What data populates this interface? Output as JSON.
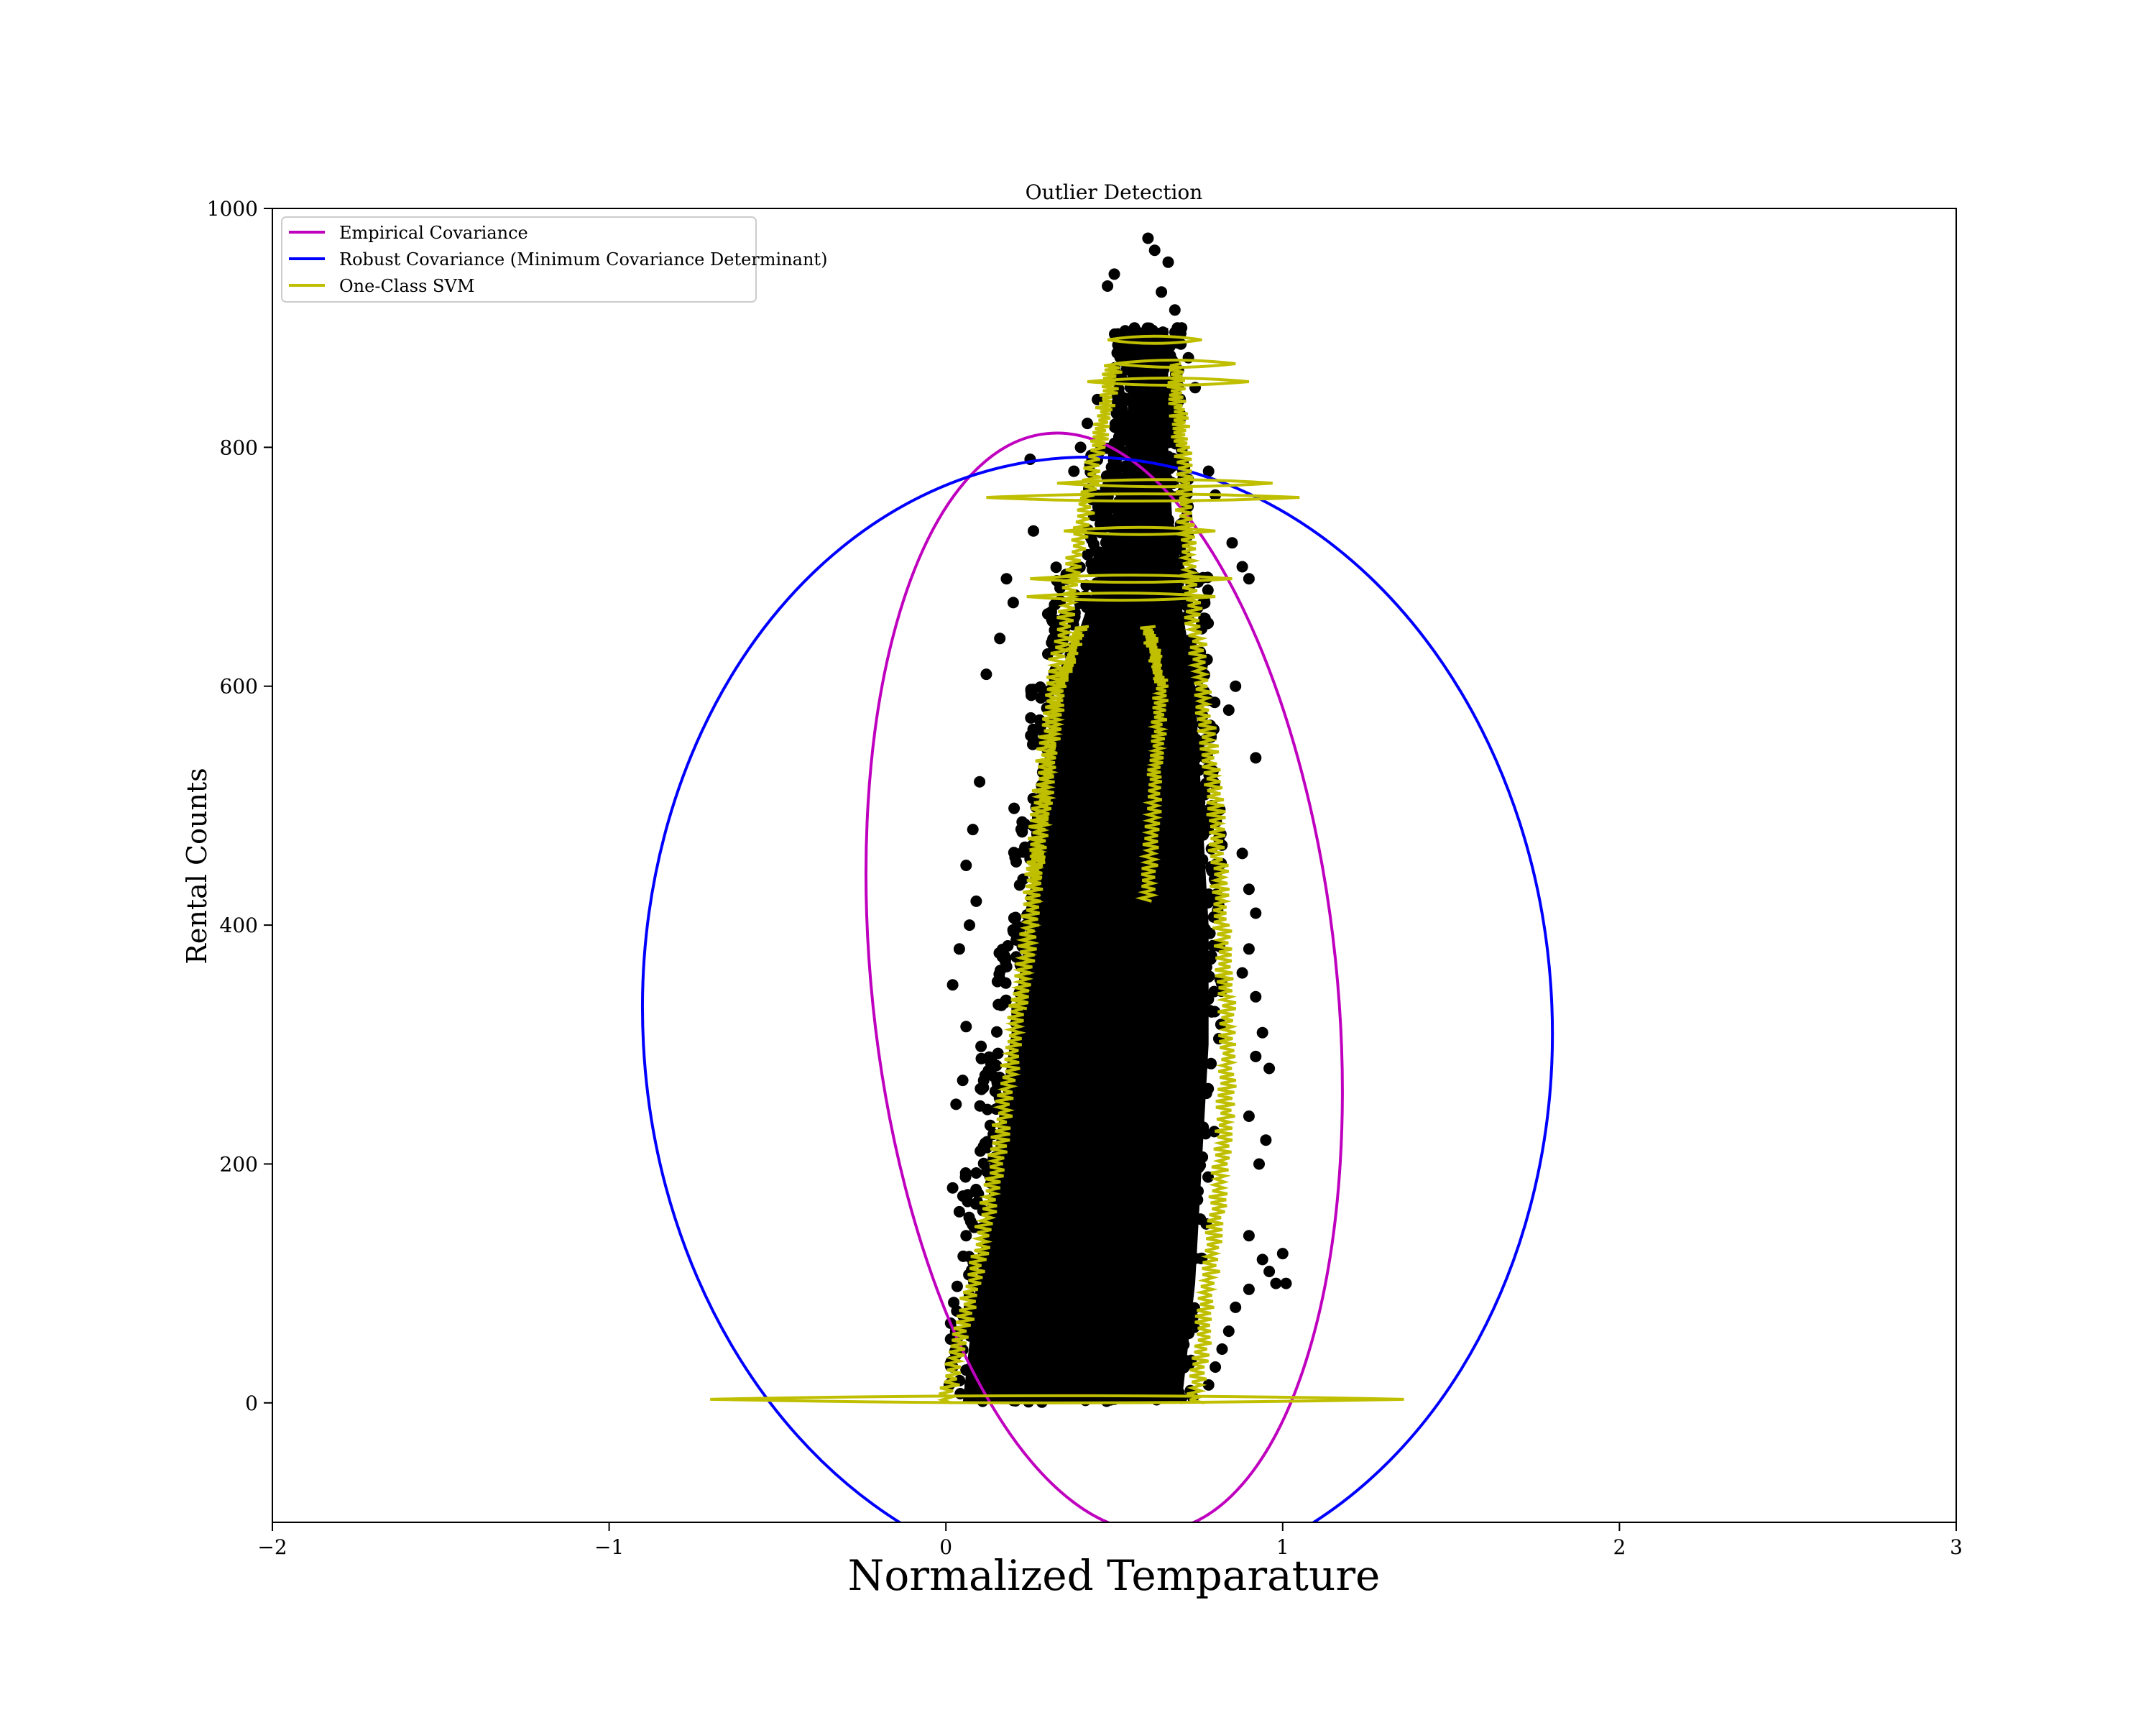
{
  "chart_data": {
    "type": "scatter",
    "title": "Outlier Detection",
    "xlabel": "Normalized Temparature",
    "ylabel": "Rental Counts",
    "xlim": [
      -2,
      3
    ],
    "ylim": [
      -100,
      1000
    ],
    "xticks": [
      -2,
      -1,
      0,
      1,
      2,
      3
    ],
    "xtick_labels": [
      "−2",
      "−1",
      "0",
      "1",
      "2",
      "3"
    ],
    "yticks": [
      0,
      200,
      400,
      600,
      800,
      1000
    ],
    "ytick_labels": [
      "0",
      "200",
      "400",
      "600",
      "800",
      "1000"
    ],
    "grid": false,
    "legend_position": "top-left",
    "legend": [
      {
        "label": "Empirical Covariance",
        "color": "#bf00bf"
      },
      {
        "label": "Robust Covariance (Minimum Covariance Determinant)",
        "color": "#0000ff"
      },
      {
        "label": "One-Class SVM",
        "color": "#bfbf00"
      }
    ],
    "scatter_color": "#000000",
    "scatter_points": [
      [
        0.25,
        790
      ],
      [
        0.26,
        730
      ],
      [
        0.5,
        945
      ],
      [
        0.48,
        935
      ],
      [
        0.6,
        975
      ],
      [
        0.62,
        965
      ],
      [
        0.66,
        955
      ],
      [
        0.64,
        930
      ],
      [
        0.68,
        915
      ],
      [
        0.56,
        900
      ],
      [
        0.54,
        880
      ],
      [
        0.7,
        900
      ],
      [
        0.72,
        875
      ],
      [
        0.74,
        850
      ],
      [
        0.45,
        840
      ],
      [
        0.42,
        820
      ],
      [
        0.4,
        800
      ],
      [
        0.38,
        780
      ],
      [
        0.78,
        780
      ],
      [
        0.8,
        760
      ],
      [
        0.85,
        720
      ],
      [
        0.88,
        700
      ],
      [
        0.9,
        690
      ],
      [
        0.18,
        690
      ],
      [
        0.2,
        670
      ],
      [
        0.16,
        640
      ],
      [
        0.12,
        610
      ],
      [
        0.86,
        600
      ],
      [
        0.84,
        580
      ],
      [
        0.92,
        540
      ],
      [
        0.1,
        520
      ],
      [
        0.08,
        480
      ],
      [
        0.06,
        450
      ],
      [
        0.88,
        460
      ],
      [
        0.9,
        430
      ],
      [
        0.92,
        410
      ],
      [
        0.09,
        420
      ],
      [
        0.07,
        400
      ],
      [
        0.04,
        380
      ],
      [
        0.02,
        350
      ],
      [
        0.9,
        380
      ],
      [
        0.88,
        360
      ],
      [
        0.92,
        340
      ],
      [
        0.06,
        315
      ],
      [
        0.94,
        310
      ],
      [
        0.92,
        290
      ],
      [
        0.96,
        280
      ],
      [
        0.05,
        270
      ],
      [
        0.03,
        250
      ],
      [
        0.9,
        240
      ],
      [
        0.95,
        220
      ],
      [
        0.93,
        200
      ],
      [
        0.02,
        180
      ],
      [
        0.04,
        160
      ],
      [
        0.06,
        140
      ],
      [
        0.9,
        140
      ],
      [
        0.94,
        120
      ],
      [
        0.96,
        110
      ],
      [
        0.98,
        100
      ],
      [
        1.0,
        125
      ],
      [
        1.01,
        100
      ],
      [
        0.9,
        95
      ],
      [
        0.86,
        80
      ],
      [
        0.84,
        60
      ],
      [
        0.82,
        45
      ],
      [
        0.8,
        30
      ],
      [
        0.78,
        15
      ],
      [
        0.02,
        30
      ],
      [
        0.01,
        15
      ],
      [
        0.03,
        40
      ],
      [
        0.05,
        60
      ],
      [
        0.07,
        80
      ],
      [
        0.3,
        5
      ],
      [
        0.5,
        3
      ],
      [
        0.7,
        4
      ],
      [
        0.2,
        2
      ],
      [
        0.1,
        6
      ],
      [
        0.35,
        640
      ],
      [
        0.37,
        600
      ],
      [
        0.4,
        560
      ],
      [
        0.33,
        520
      ],
      [
        0.3,
        480
      ],
      [
        0.28,
        440
      ],
      [
        0.73,
        620
      ],
      [
        0.75,
        580
      ],
      [
        0.77,
        540
      ],
      [
        0.79,
        500
      ]
    ],
    "scatter_density": [
      {
        "y": [
          0,
          100
        ],
        "x": [
          0.01,
          0.74
        ]
      },
      {
        "y": [
          100,
          200
        ],
        "x": [
          0.05,
          0.78
        ]
      },
      {
        "y": [
          200,
          300
        ],
        "x": [
          0.1,
          0.8
        ]
      },
      {
        "y": [
          300,
          400
        ],
        "x": [
          0.15,
          0.82
        ]
      },
      {
        "y": [
          400,
          500
        ],
        "x": [
          0.2,
          0.82
        ]
      },
      {
        "y": [
          500,
          600
        ],
        "x": [
          0.25,
          0.8
        ]
      },
      {
        "y": [
          600,
          700
        ],
        "x": [
          0.3,
          0.78
        ]
      },
      {
        "y": [
          700,
          800
        ],
        "x": [
          0.42,
          0.72
        ]
      },
      {
        "y": [
          800,
          900
        ],
        "x": [
          0.5,
          0.7
        ]
      }
    ],
    "empirical_covariance_ellipse": {
      "center": [
        0.47,
        352
      ],
      "rx": 0.69,
      "ry": 462,
      "rotation_deg": -6
    },
    "robust_covariance_ellipse": {
      "center": [
        0.45,
        320
      ],
      "rx": 1.35,
      "ry": 472,
      "rotation_deg": -3
    },
    "svm_left_boundary": [
      [
        0.0,
        0
      ],
      [
        0.08,
        100
      ],
      [
        0.15,
        200
      ],
      [
        0.2,
        300
      ],
      [
        0.25,
        400
      ],
      [
        0.28,
        500
      ],
      [
        0.32,
        600
      ],
      [
        0.38,
        700
      ],
      [
        0.45,
        800
      ],
      [
        0.5,
        870
      ]
    ],
    "svm_right_boundary": [
      [
        0.74,
        0
      ],
      [
        0.78,
        100
      ],
      [
        0.82,
        200
      ],
      [
        0.84,
        300
      ],
      [
        0.82,
        400
      ],
      [
        0.8,
        500
      ],
      [
        0.76,
        600
      ],
      [
        0.72,
        700
      ],
      [
        0.7,
        800
      ],
      [
        0.68,
        870
      ]
    ],
    "svm_inner_left": [
      [
        0.22,
        330
      ],
      [
        0.26,
        430
      ],
      [
        0.3,
        520
      ],
      [
        0.34,
        600
      ],
      [
        0.4,
        650
      ]
    ],
    "svm_inner_right": [
      [
        0.6,
        420
      ],
      [
        0.62,
        520
      ],
      [
        0.64,
        600
      ],
      [
        0.6,
        650
      ]
    ],
    "svm_horizontal_segments": [
      {
        "y": 3,
        "x": [
          -0.7,
          1.36
        ]
      },
      {
        "y": 758,
        "x": [
          0.12,
          1.05
        ]
      },
      {
        "y": 770,
        "x": [
          0.33,
          0.97
        ]
      },
      {
        "y": 855,
        "x": [
          0.42,
          0.9
        ]
      },
      {
        "y": 870,
        "x": [
          0.5,
          0.86
        ]
      },
      {
        "y": 890,
        "x": [
          0.48,
          0.76
        ]
      },
      {
        "y": 730,
        "x": [
          0.35,
          0.8
        ]
      },
      {
        "y": 690,
        "x": [
          0.25,
          0.85
        ]
      },
      {
        "y": 675,
        "x": [
          0.24,
          0.8
        ]
      }
    ]
  }
}
